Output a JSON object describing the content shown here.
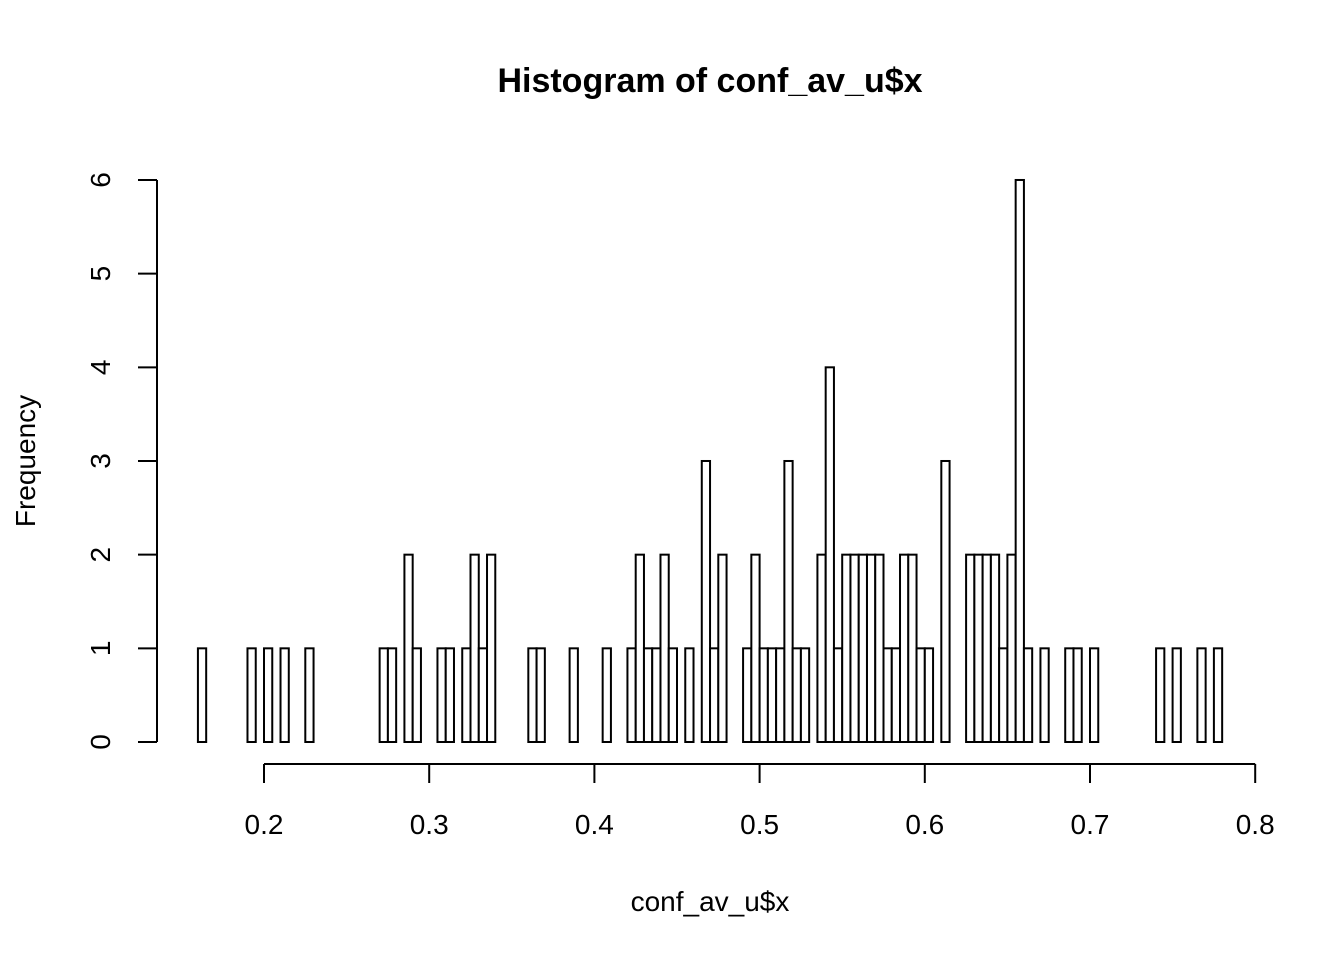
{
  "chart_data": {
    "type": "bar",
    "title": "Histogram of conf_av_u$x",
    "xlabel": "conf_av_u$x",
    "ylabel": "Frequency",
    "xlim": [
      0.16,
      0.78
    ],
    "ylim": [
      0,
      6
    ],
    "bin_width": 0.005,
    "x_ticks": [
      0.2,
      0.3,
      0.4,
      0.5,
      0.6,
      0.7,
      0.8
    ],
    "x_tick_labels": [
      "0.2",
      "0.3",
      "0.4",
      "0.5",
      "0.6",
      "0.7",
      "0.8"
    ],
    "y_ticks": [
      0,
      1,
      2,
      3,
      4,
      5,
      6
    ],
    "y_tick_labels": [
      "0",
      "1",
      "2",
      "3",
      "4",
      "5",
      "6"
    ],
    "bin_starts": [
      0.16,
      0.165,
      0.17,
      0.175,
      0.18,
      0.185,
      0.19,
      0.195,
      0.2,
      0.205,
      0.21,
      0.215,
      0.22,
      0.225,
      0.23,
      0.235,
      0.24,
      0.245,
      0.25,
      0.255,
      0.26,
      0.265,
      0.27,
      0.275,
      0.28,
      0.285,
      0.29,
      0.295,
      0.3,
      0.305,
      0.31,
      0.315,
      0.32,
      0.325,
      0.33,
      0.335,
      0.34,
      0.345,
      0.35,
      0.355,
      0.36,
      0.365,
      0.37,
      0.375,
      0.38,
      0.385,
      0.39,
      0.395,
      0.4,
      0.405,
      0.41,
      0.415,
      0.42,
      0.425,
      0.43,
      0.435,
      0.44,
      0.445,
      0.45,
      0.455,
      0.46,
      0.465,
      0.47,
      0.475,
      0.48,
      0.485,
      0.49,
      0.495,
      0.5,
      0.505,
      0.51,
      0.515,
      0.52,
      0.525,
      0.53,
      0.535,
      0.54,
      0.545,
      0.55,
      0.555,
      0.56,
      0.565,
      0.57,
      0.575,
      0.58,
      0.585,
      0.59,
      0.595,
      0.6,
      0.605,
      0.61,
      0.615,
      0.62,
      0.625,
      0.63,
      0.635,
      0.64,
      0.645,
      0.65,
      0.655,
      0.66,
      0.665,
      0.67,
      0.675,
      0.68,
      0.685,
      0.69,
      0.695,
      0.7,
      0.705,
      0.71,
      0.715,
      0.72,
      0.725,
      0.73,
      0.735,
      0.74,
      0.745,
      0.75,
      0.755,
      0.76,
      0.765,
      0.77,
      0.775
    ],
    "values": [
      1,
      0,
      0,
      0,
      0,
      0,
      1,
      0,
      1,
      0,
      1,
      0,
      0,
      1,
      0,
      0,
      0,
      0,
      0,
      0,
      0,
      0,
      1,
      1,
      0,
      2,
      1,
      0,
      0,
      1,
      1,
      0,
      1,
      2,
      1,
      2,
      0,
      0,
      0,
      0,
      1,
      1,
      0,
      0,
      0,
      1,
      0,
      0,
      0,
      1,
      0,
      0,
      1,
      2,
      1,
      1,
      2,
      1,
      0,
      1,
      0,
      3,
      1,
      2,
      0,
      0,
      1,
      2,
      1,
      1,
      1,
      3,
      1,
      1,
      0,
      2,
      4,
      1,
      2,
      2,
      2,
      2,
      2,
      1,
      1,
      2,
      2,
      1,
      1,
      0,
      3,
      0,
      0,
      2,
      2,
      2,
      2,
      1,
      2,
      6,
      1,
      0,
      1,
      0,
      0,
      1,
      1,
      0,
      1,
      0,
      0,
      0,
      0,
      0,
      0,
      0,
      1,
      0,
      1,
      0,
      0,
      1,
      0,
      1
    ]
  }
}
